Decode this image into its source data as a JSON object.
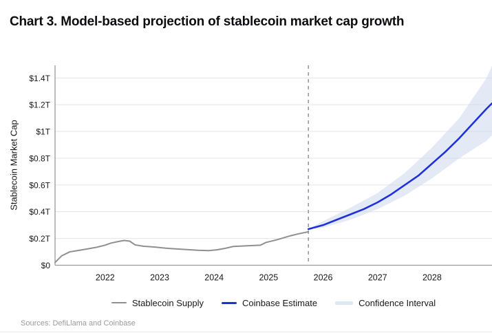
{
  "page": {
    "sources": "Sources: DefiLlama and Coinbase"
  },
  "legend": [
    {
      "label": "Stablecoin Supply",
      "swatch": "line",
      "color": "#8f8f8f",
      "thickness": 2
    },
    {
      "label": "Coinbase Estimate",
      "swatch": "line",
      "color": "#2030d9",
      "thickness": 3
    },
    {
      "label": "Confidence Interval",
      "swatch": "band",
      "color": "#dde6f3",
      "thickness": 5
    }
  ],
  "chart_data": {
    "type": "line",
    "title": "Chart 3. Model-based projection of stablecoin market cap growth",
    "xlabel": "",
    "ylabel": "Stablecoin Market Cap",
    "grid": "horizontal",
    "legend_position": "bottom",
    "xlim": [
      2021.08,
      2029.1
    ],
    "ylim": [
      0,
      1.494
    ],
    "x_ticks": [
      2022,
      2023,
      2024,
      2025,
      2026,
      2027,
      2028
    ],
    "x_tick_labels": [
      "2022",
      "2023",
      "2024",
      "2025",
      "2026",
      "2027",
      "2028"
    ],
    "y_ticks": [
      {
        "value": 0,
        "label": "$0"
      },
      {
        "value": 0.2,
        "label": "$0.2T"
      },
      {
        "value": 0.4,
        "label": "$0.4T"
      },
      {
        "value": 0.6,
        "label": "$0.6T"
      },
      {
        "value": 0.8,
        "label": "$0.8T"
      },
      {
        "value": 1.0,
        "label": "$1T"
      },
      {
        "value": 1.2,
        "label": "$1.2T"
      },
      {
        "value": 1.4,
        "label": "$1.4T"
      }
    ],
    "forecast_divider_x": 2025.73,
    "units": "trillions USD",
    "series": [
      {
        "name": "Stablecoin Supply",
        "color": "#8f8f8f",
        "width": 2,
        "x": [
          2021.08,
          2021.2,
          2021.35,
          2021.5,
          2021.65,
          2021.85,
          2022.0,
          2022.1,
          2022.25,
          2022.35,
          2022.45,
          2022.55,
          2022.7,
          2022.9,
          2023.1,
          2023.3,
          2023.5,
          2023.7,
          2023.9,
          2024.05,
          2024.2,
          2024.35,
          2024.6,
          2024.85,
          2024.95,
          2025.15,
          2025.4,
          2025.55,
          2025.73
        ],
        "y": [
          0.02,
          0.07,
          0.1,
          0.11,
          0.12,
          0.135,
          0.15,
          0.165,
          0.178,
          0.185,
          0.18,
          0.152,
          0.142,
          0.136,
          0.128,
          0.122,
          0.117,
          0.112,
          0.109,
          0.115,
          0.126,
          0.14,
          0.145,
          0.15,
          0.17,
          0.19,
          0.22,
          0.235,
          0.25
        ]
      },
      {
        "name": "Coinbase Estimate",
        "color": "#2030d9",
        "width": 2.6,
        "x": [
          2025.73,
          2026.0,
          2026.25,
          2026.5,
          2026.75,
          2027.0,
          2027.25,
          2027.5,
          2027.75,
          2028.0,
          2028.25,
          2028.5,
          2028.75,
          2029.0,
          2029.1
        ],
        "y": [
          0.27,
          0.3,
          0.34,
          0.38,
          0.42,
          0.47,
          0.53,
          0.6,
          0.67,
          0.76,
          0.85,
          0.95,
          1.06,
          1.17,
          1.21
        ]
      }
    ],
    "band": {
      "name": "Confidence Interval",
      "color": "#ccd9ee",
      "opacity": 0.55,
      "x": [
        2025.73,
        2026.0,
        2026.5,
        2027.0,
        2027.5,
        2028.0,
        2028.5,
        2029.0,
        2029.1
      ],
      "upper": [
        0.27,
        0.33,
        0.43,
        0.54,
        0.69,
        0.88,
        1.1,
        1.4,
        1.49
      ],
      "lower": [
        0.27,
        0.28,
        0.34,
        0.42,
        0.52,
        0.65,
        0.8,
        0.93,
        0.97
      ]
    }
  }
}
